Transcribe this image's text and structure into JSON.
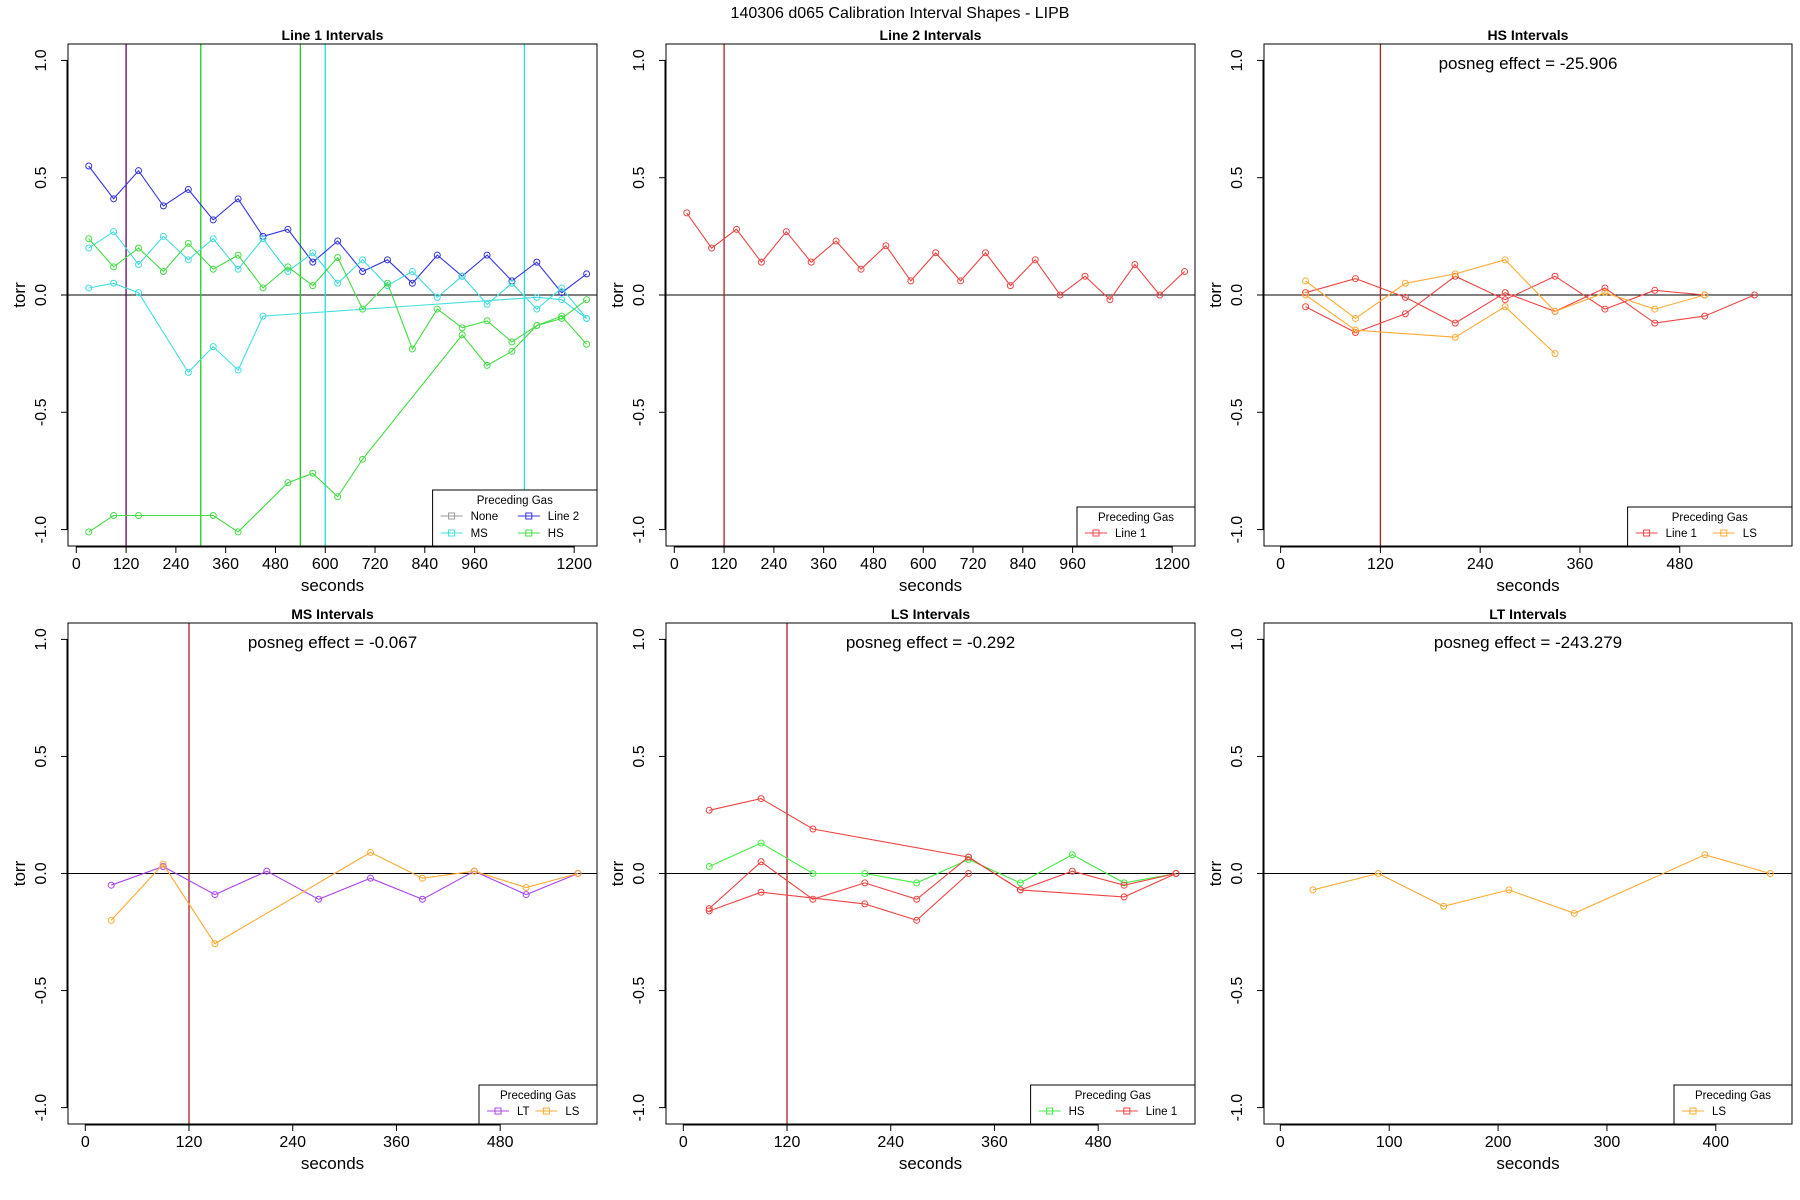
{
  "figure_title": "140306   d065   Calibration Interval Shapes - LIPB",
  "chart_data": [
    {
      "type": "line",
      "title": "Line 1 Intervals",
      "xlabel": "seconds",
      "ylabel": "torr",
      "xlim": [
        -20,
        1255
      ],
      "ylim": [
        -1.07,
        1.07
      ],
      "xticks": [
        0,
        120,
        240,
        360,
        480,
        600,
        720,
        840,
        960,
        1200
      ],
      "yticks": [
        -1.0,
        -0.5,
        0.0,
        0.5,
        1.0
      ],
      "ytick_labels": [
        "-1.0",
        "-0.5",
        "0.0",
        "0.5",
        "1.0"
      ],
      "hline": 0,
      "vlines": [
        {
          "x": 120,
          "color": "#660066"
        },
        {
          "x": 300,
          "color": "#22cc22"
        },
        {
          "x": 540,
          "color": "#22cc22"
        },
        {
          "x": 600,
          "color": "#22dddd"
        },
        {
          "x": 1080,
          "color": "#22dddd"
        }
      ],
      "series": [
        {
          "color": "#3333dd",
          "x": [
            30,
            90,
            150,
            210,
            270,
            330,
            390,
            450,
            510,
            570,
            630,
            690,
            750,
            810,
            870,
            930,
            990,
            1050,
            1110,
            1170,
            1230
          ],
          "y": [
            0.55,
            0.41,
            0.53,
            0.38,
            0.45,
            0.32,
            0.41,
            0.25,
            0.28,
            0.14,
            0.23,
            0.1,
            0.15,
            0.05,
            0.17,
            0.08,
            0.17,
            0.06,
            0.14,
            0.01,
            0.09
          ]
        },
        {
          "color": "#44dddd",
          "x": [
            30,
            90,
            150,
            210,
            270,
            330,
            390,
            450,
            510,
            570,
            630,
            690,
            750,
            810,
            870,
            930,
            990,
            1050,
            1110,
            1170,
            1230
          ],
          "y": [
            0.2,
            0.27,
            0.13,
            0.25,
            0.15,
            0.24,
            0.11,
            0.24,
            0.1,
            0.18,
            0.05,
            0.15,
            0.04,
            0.1,
            -0.01,
            0.08,
            -0.04,
            0.05,
            -0.06,
            0.03,
            -0.1
          ]
        },
        {
          "color": "#44dddd",
          "x": [
            30,
            90,
            150,
            270,
            330,
            390,
            450,
            1110,
            1170,
            1230
          ],
          "y": [
            0.03,
            0.05,
            0.01,
            -0.33,
            -0.22,
            -0.32,
            -0.09,
            -0.01,
            -0.02,
            -0.1
          ]
        },
        {
          "color": "#44dd44",
          "x": [
            30,
            90,
            150,
            210,
            270,
            330,
            390,
            450,
            510,
            570,
            630,
            690,
            750,
            810,
            870,
            930,
            990,
            1050,
            1110,
            1170,
            1230
          ],
          "y": [
            0.24,
            0.12,
            0.2,
            0.1,
            0.22,
            0.11,
            0.17,
            0.03,
            0.12,
            0.04,
            0.16,
            -0.06,
            0.05,
            -0.23,
            -0.06,
            -0.14,
            -0.11,
            -0.2,
            -0.13,
            -0.09,
            -0.21
          ]
        },
        {
          "color": "#44dd44",
          "x": [
            30,
            90,
            150,
            330,
            390,
            510,
            570,
            630,
            690,
            930,
            990,
            1050,
            1110,
            1170,
            1230
          ],
          "y": [
            -1.01,
            -0.94,
            -0.94,
            -0.94,
            -1.01,
            -0.8,
            -0.76,
            -0.86,
            -0.7,
            -0.17,
            -0.3,
            -0.24,
            -0.13,
            -0.1,
            -0.02
          ]
        }
      ],
      "legend": {
        "title": "Preceding Gas",
        "position": "bottom-right",
        "columns": 2,
        "entries": [
          {
            "label": "None",
            "color": "#999999"
          },
          {
            "label": "Line 2",
            "color": "#3333dd"
          },
          {
            "label": "MS",
            "color": "#44dddd"
          },
          {
            "label": "HS",
            "color": "#44dd44"
          }
        ]
      }
    },
    {
      "type": "line",
      "title": "Line 2 Intervals",
      "xlabel": "seconds",
      "ylabel": "torr",
      "xlim": [
        -20,
        1255
      ],
      "ylim": [
        -1.07,
        1.07
      ],
      "xticks": [
        0,
        120,
        240,
        360,
        480,
        600,
        720,
        840,
        960,
        1200
      ],
      "yticks": [
        -1.0,
        -0.5,
        0.0,
        0.5,
        1.0
      ],
      "ytick_labels": [
        "-1.0",
        "-0.5",
        "0.0",
        "0.5",
        "1.0"
      ],
      "hline": 0,
      "vlines": [
        {
          "x": 120,
          "color": "#aa2222"
        }
      ],
      "series": [
        {
          "color": "#ee4444",
          "x": [
            30,
            90,
            150,
            210,
            270,
            330,
            390,
            450,
            510,
            570,
            630,
            690,
            750,
            810,
            870,
            930,
            990,
            1050,
            1110,
            1170,
            1230
          ],
          "y": [
            0.35,
            0.2,
            0.28,
            0.14,
            0.27,
            0.14,
            0.23,
            0.11,
            0.21,
            0.06,
            0.18,
            0.06,
            0.18,
            0.04,
            0.15,
            0.0,
            0.08,
            -0.02,
            0.13,
            0.0,
            0.1
          ]
        }
      ],
      "legend": {
        "title": "Preceding Gas",
        "position": "bottom-right",
        "columns": 1,
        "entries": [
          {
            "label": "Line 1",
            "color": "#ee4444"
          }
        ]
      }
    },
    {
      "type": "line",
      "title": "HS Intervals",
      "annotation": "posneg effect = -25.906",
      "xlabel": "seconds",
      "ylabel": "torr",
      "xlim": [
        -20,
        615
      ],
      "ylim": [
        -1.07,
        1.07
      ],
      "xticks": [
        0,
        120,
        240,
        360,
        480
      ],
      "yticks": [
        -1.0,
        -0.5,
        0.0,
        0.5,
        1.0
      ],
      "ytick_labels": [
        "-1.0",
        "-0.5",
        "0.0",
        "0.5",
        "1.0"
      ],
      "hline": 0,
      "vlines": [
        {
          "x": 120,
          "color": "#aa2222"
        }
      ],
      "series": [
        {
          "color": "#ee4444",
          "x": [
            30,
            90,
            150,
            210,
            270,
            330,
            390,
            450,
            510,
            570
          ],
          "y": [
            0.01,
            0.07,
            -0.01,
            -0.12,
            0.01,
            -0.07,
            0.03,
            -0.12,
            -0.09,
            0.0
          ]
        },
        {
          "color": "#ee4444",
          "x": [
            30,
            90,
            150,
            210,
            270,
            330,
            390,
            450,
            510
          ],
          "y": [
            -0.05,
            -0.16,
            -0.08,
            0.08,
            -0.02,
            0.08,
            -0.06,
            0.02,
            0.0
          ]
        },
        {
          "color": "#ffaa33",
          "x": [
            30,
            90,
            150,
            210,
            270,
            330,
            390,
            450,
            510
          ],
          "y": [
            0.06,
            -0.1,
            0.05,
            0.09,
            0.15,
            -0.07,
            0.01,
            -0.06,
            0.0
          ]
        },
        {
          "color": "#ffaa33",
          "x": [
            30,
            90,
            210,
            270,
            330
          ],
          "y": [
            0.0,
            -0.15,
            -0.18,
            -0.05,
            -0.25
          ]
        }
      ],
      "legend": {
        "title": "Preceding Gas",
        "position": "bottom-right",
        "columns": 2,
        "entries": [
          {
            "label": "Line 1",
            "color": "#ee4444"
          },
          {
            "label": "LS",
            "color": "#ffaa33"
          }
        ]
      }
    },
    {
      "type": "line",
      "title": "MS Intervals",
      "annotation": "posneg effect = -0.067",
      "xlabel": "seconds",
      "ylabel": "torr",
      "xlim": [
        -20,
        592
      ],
      "ylim": [
        -1.07,
        1.07
      ],
      "xticks": [
        0,
        120,
        240,
        360,
        480
      ],
      "yticks": [
        -1.0,
        -0.5,
        0.0,
        0.5,
        1.0
      ],
      "ytick_labels": [
        "-1.0",
        "-0.5",
        "0.0",
        "0.5",
        "1.0"
      ],
      "hline": 0,
      "vlines": [
        {
          "x": 120,
          "color": "#aa2222"
        }
      ],
      "series": [
        {
          "color": "#aa44ee",
          "x": [
            30,
            90,
            150,
            210,
            270,
            330,
            390,
            450,
            510,
            570
          ],
          "y": [
            -0.05,
            0.03,
            -0.09,
            0.01,
            -0.11,
            -0.02,
            -0.11,
            0.01,
            -0.09,
            0.0
          ]
        },
        {
          "color": "#ffaa33",
          "x": [
            30,
            90,
            150,
            330,
            390,
            450,
            510,
            570
          ],
          "y": [
            -0.2,
            0.04,
            -0.3,
            0.09,
            -0.02,
            0.01,
            -0.06,
            0.0
          ]
        }
      ],
      "legend": {
        "title": "Preceding Gas",
        "position": "bottom-right",
        "columns": 2,
        "entries": [
          {
            "label": "LT",
            "color": "#aa44ee"
          },
          {
            "label": "LS",
            "color": "#ffaa33"
          }
        ]
      }
    },
    {
      "type": "line",
      "title": "LS Intervals",
      "annotation": "posneg effect = -0.292",
      "xlabel": "seconds",
      "ylabel": "torr",
      "xlim": [
        -20,
        592
      ],
      "ylim": [
        -1.07,
        1.07
      ],
      "xticks": [
        0,
        120,
        240,
        360,
        480
      ],
      "yticks": [
        -1.0,
        -0.5,
        0.0,
        0.5,
        1.0
      ],
      "ytick_labels": [
        "-1.0",
        "-0.5",
        "0.0",
        "0.5",
        "1.0"
      ],
      "hline": 0,
      "vlines": [
        {
          "x": 120,
          "color": "#aa2222"
        }
      ],
      "series": [
        {
          "color": "#44ee44",
          "x": [
            30,
            90,
            150,
            210,
            270,
            330,
            390,
            450,
            510,
            570
          ],
          "y": [
            0.03,
            0.13,
            0.0,
            0.0,
            -0.04,
            0.06,
            -0.04,
            0.08,
            -0.04,
            0.0
          ]
        },
        {
          "color": "#ee4444",
          "x": [
            30,
            90,
            150,
            330,
            390,
            510,
            570
          ],
          "y": [
            0.27,
            0.32,
            0.19,
            0.07,
            -0.07,
            -0.1,
            0.0
          ]
        },
        {
          "color": "#ee4444",
          "x": [
            30,
            90,
            150,
            210,
            270,
            330,
            390,
            450,
            510,
            570
          ],
          "y": [
            -0.15,
            0.05,
            -0.11,
            -0.04,
            -0.11,
            0.07,
            -0.07,
            0.01,
            -0.05,
            0.0
          ]
        },
        {
          "color": "#ee4444",
          "x": [
            30,
            90,
            210,
            270,
            330
          ],
          "y": [
            -0.16,
            -0.08,
            -0.13,
            -0.2,
            0.0
          ]
        }
      ],
      "legend": {
        "title": "Preceding Gas",
        "position": "bottom-right",
        "columns": 2,
        "entries": [
          {
            "label": "HS",
            "color": "#44ee44"
          },
          {
            "label": "Line 1",
            "color": "#ee4444"
          }
        ]
      }
    },
    {
      "type": "line",
      "title": "LT Intervals",
      "annotation": "posneg effect = -243.279",
      "xlabel": "seconds",
      "ylabel": "torr",
      "xlim": [
        -15,
        470
      ],
      "ylim": [
        -1.07,
        1.07
      ],
      "xticks": [
        0,
        100,
        200,
        300,
        400
      ],
      "yticks": [
        -1.0,
        -0.5,
        0.0,
        0.5,
        1.0
      ],
      "ytick_labels": [
        "-1.0",
        "-0.5",
        "0.0",
        "0.5",
        "1.0"
      ],
      "hline": 0,
      "vlines": [],
      "series": [
        {
          "color": "#ffaa33",
          "x": [
            30,
            90,
            150,
            210,
            270,
            390,
            450
          ],
          "y": [
            -0.07,
            0.0,
            -0.14,
            -0.07,
            -0.17,
            0.08,
            0.0
          ]
        }
      ],
      "legend": {
        "title": "Preceding Gas",
        "position": "bottom-right",
        "columns": 1,
        "entries": [
          {
            "label": "LS",
            "color": "#ffaa33"
          }
        ]
      }
    }
  ]
}
